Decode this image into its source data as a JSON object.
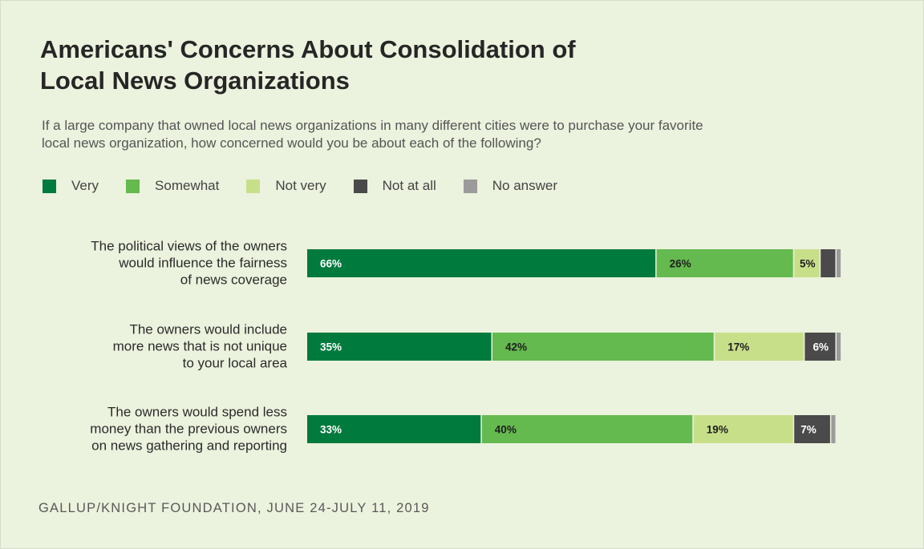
{
  "title": "Americans' Concerns About Consolidation of\nLocal News Organizations",
  "subtitle": "If a large company that owned local news organizations in many different cities were to purchase your favorite\nlocal news organization, how concerned would you be about each of the following?",
  "source": "GALLUP/KNIGHT FOUNDATION, JUNE 24-JULY 11, 2019",
  "chart_data": {
    "type": "bar",
    "orientation": "horizontal",
    "stacked": true,
    "xlim": [
      0,
      100
    ],
    "grid": false,
    "legend_position": "top",
    "categories": [
      [
        "The political views of the owners",
        "would influence the fairness",
        "of news coverage"
      ],
      [
        "The owners would include",
        "more news that is not unique",
        "to your local area"
      ],
      [
        "The owners would spend less",
        "money than the previous owners",
        "on news gathering and reporting"
      ]
    ],
    "series": [
      {
        "name": "Very",
        "color": "#007a3d",
        "values": [
          66,
          35,
          33
        ],
        "labels": [
          "66%",
          "35%",
          "33%"
        ]
      },
      {
        "name": "Somewhat",
        "color": "#64b94f",
        "values": [
          26,
          42,
          40
        ],
        "labels": [
          "26%",
          "42%",
          "40%"
        ]
      },
      {
        "name": "Not very",
        "color": "#c8df8a",
        "values": [
          5,
          17,
          19
        ],
        "labels": [
          "5%",
          "17%",
          "19%"
        ]
      },
      {
        "name": "Not at all",
        "color": "#4a4a4a",
        "values": [
          3,
          6,
          7
        ],
        "labels": [
          "",
          "6%",
          "7%"
        ]
      },
      {
        "name": "No answer",
        "color": "#9b9b9b",
        "values": [
          1,
          1,
          1
        ],
        "labels": [
          "",
          "",
          ""
        ]
      }
    ]
  }
}
